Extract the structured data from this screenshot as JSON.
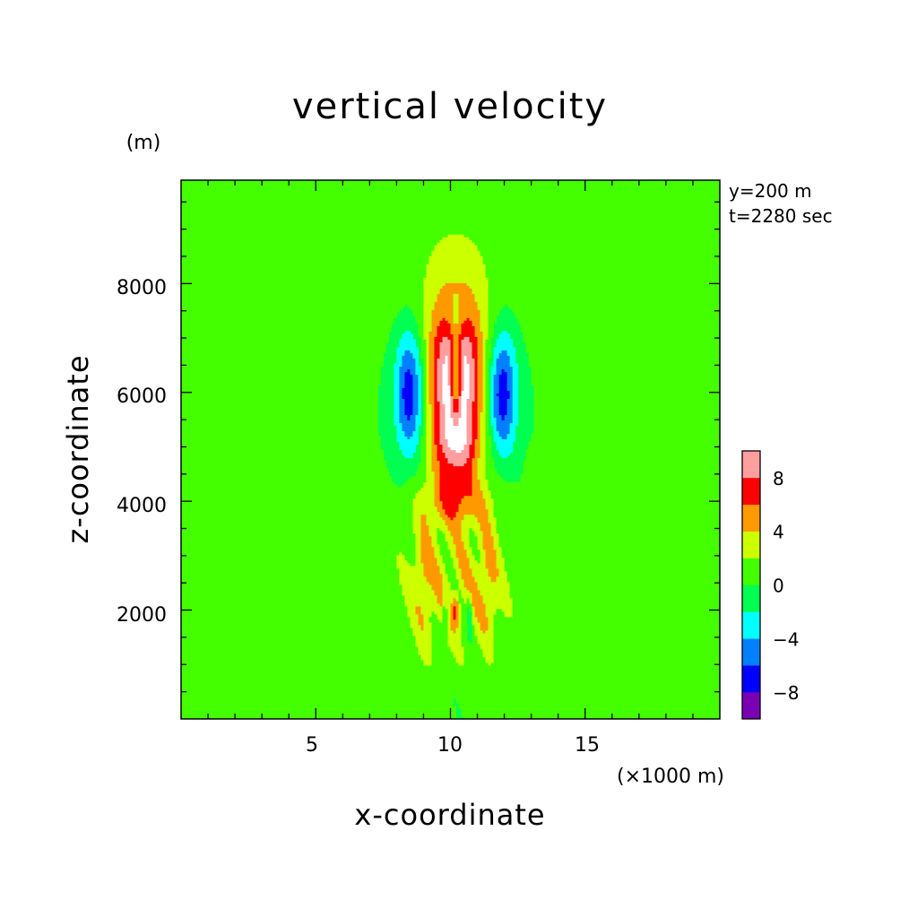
{
  "chart_data": {
    "type": "heatmap",
    "title": "vertical velocity",
    "xlabel": "x-coordinate",
    "ylabel": "z-coordinate",
    "x_unit": "(×1000 m)",
    "y_unit": "(m)",
    "annotations": [
      "y=200 m",
      "t=2280 sec"
    ],
    "xlim": [
      0,
      20
    ],
    "ylim": [
      0,
      9900
    ],
    "x_ticks": [
      5,
      10,
      15
    ],
    "y_ticks": [
      2000,
      4000,
      6000,
      8000
    ],
    "colorbar": {
      "levels": [
        -10,
        -8,
        -6,
        -4,
        -2,
        0,
        2,
        4,
        6,
        8,
        10
      ],
      "tick_labels": [
        "8",
        "4",
        "0",
        "−4",
        "−8"
      ],
      "tick_values": [
        8,
        4,
        0,
        -4,
        -8
      ],
      "colors": [
        "#7a00b4",
        "#0000ff",
        "#0080ff",
        "#00ffff",
        "#00ff50",
        "#44ff00",
        "#ccff00",
        "#ff9900",
        "#ff0000",
        "#ff9e9e"
      ],
      "above_max_color": "#ffffff"
    }
  }
}
